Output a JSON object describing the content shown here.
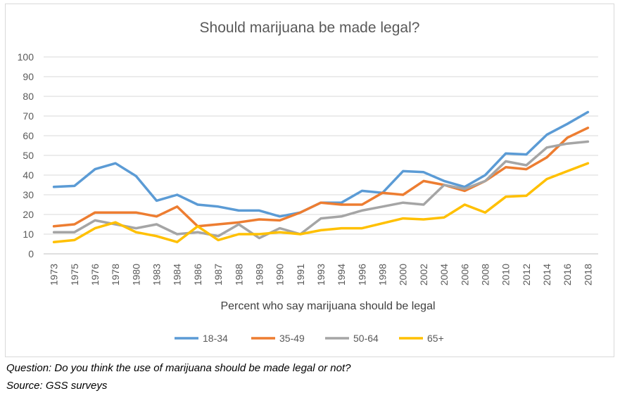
{
  "chart_data": {
    "type": "line",
    "title": "Should marijuana be made legal?",
    "xlabel": "Percent who say marijuana should be legal",
    "ylabel": "",
    "ylim": [
      0,
      100
    ],
    "yticks": [
      0,
      10,
      20,
      30,
      40,
      50,
      60,
      70,
      80,
      90,
      100
    ],
    "grid": true,
    "legend_position": "bottom",
    "categories": [
      "1973",
      "1975",
      "1976",
      "1978",
      "1980",
      "1983",
      "1984",
      "1986",
      "1987",
      "1988",
      "1989",
      "1990",
      "1991",
      "1993",
      "1994",
      "1996",
      "1998",
      "2000",
      "2002",
      "2004",
      "2006",
      "2008",
      "2010",
      "2012",
      "2014",
      "2016",
      "2018"
    ],
    "series": [
      {
        "name": "18-34",
        "color": "#5b9bd5",
        "values": [
          34,
          34.5,
          43,
          46,
          39.5,
          27,
          30,
          25,
          24,
          22,
          22,
          19,
          21,
          26,
          26,
          32,
          31,
          42,
          41.5,
          37,
          34,
          40,
          51,
          50.5,
          60.5,
          66,
          72
        ]
      },
      {
        "name": "35-49",
        "color": "#ed7d31",
        "values": [
          14,
          15,
          21,
          21,
          21,
          19,
          24,
          14,
          15,
          16,
          17.5,
          17,
          21,
          26,
          25,
          25,
          31,
          30,
          37,
          35,
          32,
          37,
          44,
          43,
          49,
          59,
          64
        ]
      },
      {
        "name": "50-64",
        "color": "#a5a5a5",
        "values": [
          11,
          11,
          17,
          15,
          13,
          15,
          10,
          11,
          9,
          15,
          8,
          13,
          10,
          18,
          19,
          22,
          24,
          26,
          25,
          35,
          33,
          37,
          47,
          45,
          54,
          56,
          57
        ]
      },
      {
        "name": "65+",
        "color": "#ffc000",
        "values": [
          6,
          7,
          13,
          16,
          11,
          9,
          6,
          14,
          7,
          10,
          10,
          11,
          10,
          12,
          13,
          13,
          15.5,
          18,
          17.5,
          18.5,
          25,
          21,
          29,
          29.5,
          38,
          42,
          46
        ]
      }
    ]
  },
  "captions": {
    "question": "Question: Do you think the use of marijuana should be made legal or not?",
    "source": "Source: GSS surveys"
  }
}
